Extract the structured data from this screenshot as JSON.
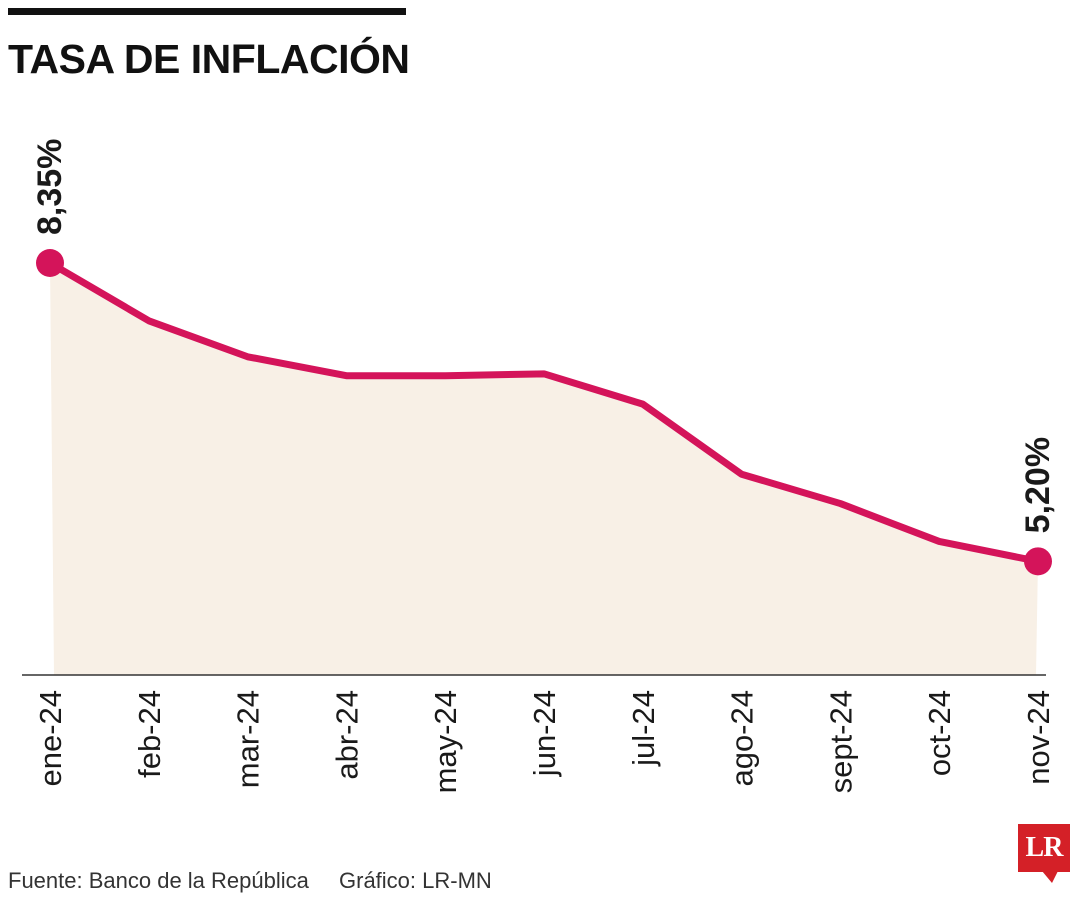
{
  "header": {
    "title": "TASA DE INFLACIÓN"
  },
  "footer": {
    "source": "Fuente: Banco de la República",
    "credit": "Gráfico: LR-MN"
  },
  "logo": {
    "text": "LR",
    "color": "#d42027"
  },
  "colors": {
    "line": "#d4145a",
    "area": "#f8f0e6",
    "axis": "#333333",
    "text": "#1a1a1a"
  },
  "chart_data": {
    "type": "area",
    "title": "TASA DE INFLACIÓN",
    "x": [
      "ene-24",
      "feb-24",
      "mar-24",
      "abr-24",
      "may-24",
      "jun-24",
      "jul-24",
      "ago-24",
      "sept-24",
      "oct-24",
      "nov-24"
    ],
    "series": [
      {
        "values": [
          8.35,
          7.74,
          7.36,
          7.16,
          7.16,
          7.18,
          6.86,
          6.12,
          5.81,
          5.41,
          5.2
        ]
      }
    ],
    "data_labels": [
      {
        "index": 0,
        "text": "8,35%"
      },
      {
        "index": 10,
        "text": "5,20%"
      }
    ],
    "ylim": [
      4.0,
      8.35
    ],
    "grid": false,
    "legend": "none"
  }
}
